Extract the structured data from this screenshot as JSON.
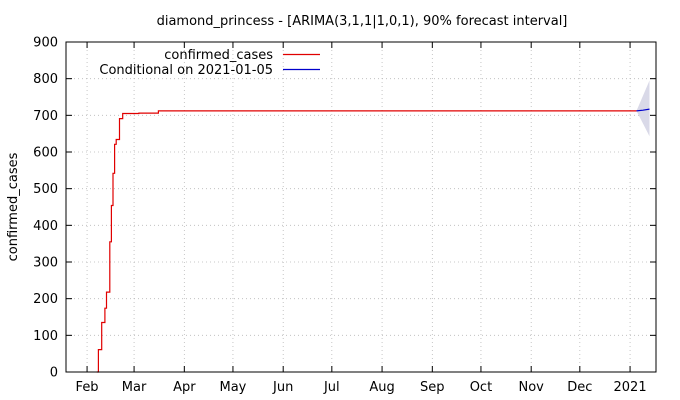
{
  "chart_data": {
    "type": "line",
    "title": "diamond_princess -  [ARIMA(3,1,1|1,0,1), 90% forecast interval]",
    "ylabel": "confirmed_cases",
    "xlabel": "",
    "ylim": [
      0,
      900
    ],
    "yticks": [
      0,
      100,
      200,
      300,
      400,
      500,
      600,
      700,
      800,
      900
    ],
    "xlim": [
      "2020-01-19",
      "2021-01-17"
    ],
    "xticks": [
      {
        "label": "Feb",
        "date": "2020-02-01"
      },
      {
        "label": "Mar",
        "date": "2020-03-01"
      },
      {
        "label": "Apr",
        "date": "2020-04-01"
      },
      {
        "label": "May",
        "date": "2020-05-01"
      },
      {
        "label": "Jun",
        "date": "2020-06-01"
      },
      {
        "label": "Jul",
        "date": "2020-07-01"
      },
      {
        "label": "Aug",
        "date": "2020-08-01"
      },
      {
        "label": "Sep",
        "date": "2020-09-01"
      },
      {
        "label": "Oct",
        "date": "2020-10-01"
      },
      {
        "label": "Nov",
        "date": "2020-11-01"
      },
      {
        "label": "Dec",
        "date": "2020-12-01"
      },
      {
        "label": "2021",
        "date": "2021-01-01"
      }
    ],
    "grid": true,
    "legend_position": "top-left",
    "series": [
      {
        "name": "confirmed_cases",
        "color": "#e00000",
        "step": true,
        "points": [
          [
            "2020-02-07",
            0
          ],
          [
            "2020-02-08",
            61
          ],
          [
            "2020-02-10",
            135
          ],
          [
            "2020-02-12",
            174
          ],
          [
            "2020-02-13",
            218
          ],
          [
            "2020-02-15",
            355
          ],
          [
            "2020-02-16",
            454
          ],
          [
            "2020-02-17",
            542
          ],
          [
            "2020-02-18",
            621
          ],
          [
            "2020-02-19",
            634
          ],
          [
            "2020-02-21",
            691
          ],
          [
            "2020-02-23",
            705
          ],
          [
            "2020-03-04",
            706
          ],
          [
            "2020-03-16",
            712
          ],
          [
            "2021-01-05",
            712
          ]
        ]
      },
      {
        "name": "Conditional on 2021-01-05",
        "color": "#0000cc",
        "step": false,
        "points": [
          [
            "2021-01-05",
            712
          ],
          [
            "2021-01-09",
            714
          ],
          [
            "2021-01-13",
            717
          ]
        ],
        "interval": {
          "color": "#d9d9e8",
          "upper": [
            [
              "2021-01-05",
              712
            ],
            [
              "2021-01-13",
              795
            ]
          ],
          "lower": [
            [
              "2021-01-05",
              712
            ],
            [
              "2021-01-13",
              643
            ]
          ]
        }
      }
    ]
  }
}
